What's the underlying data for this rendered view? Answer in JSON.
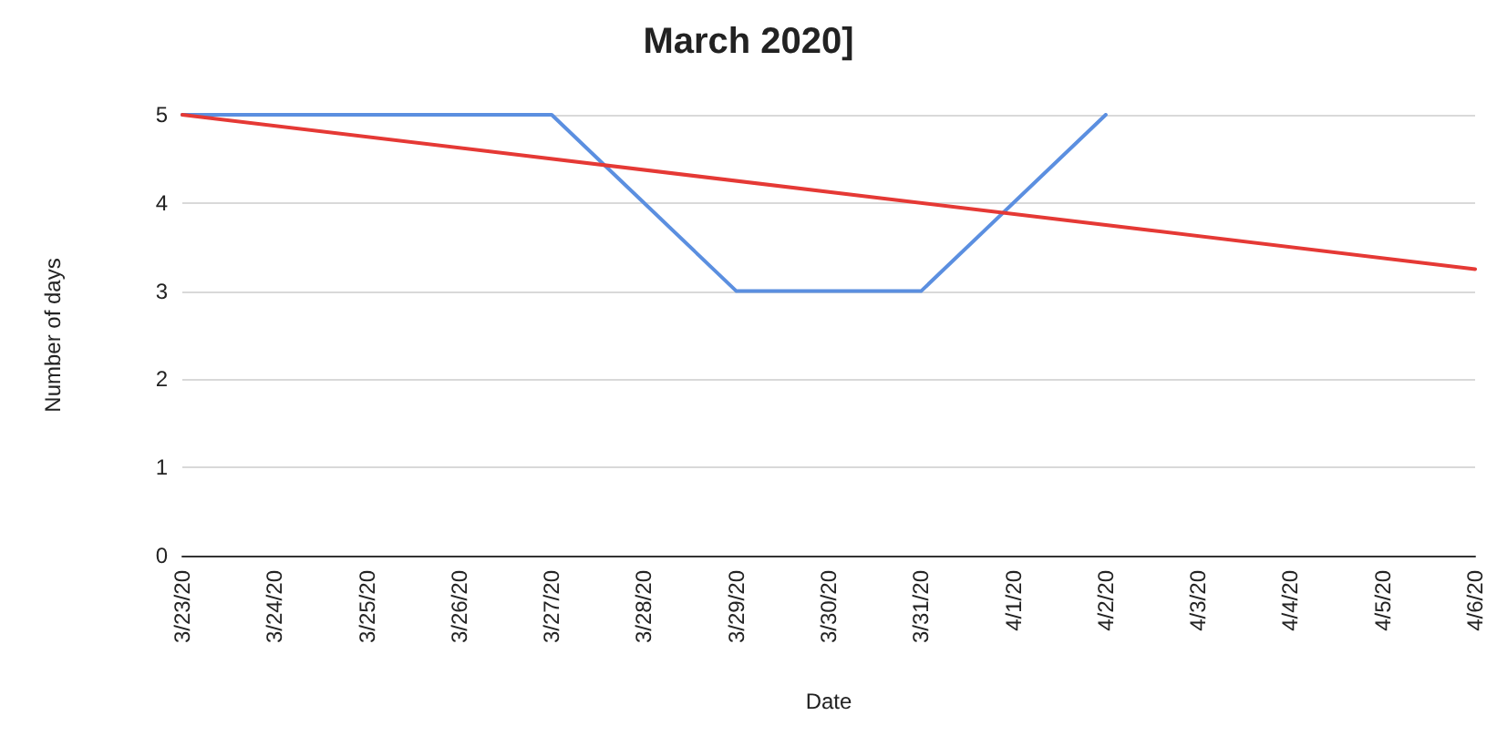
{
  "chart_data": {
    "type": "line",
    "title": "March 2020]",
    "xlabel": "Date",
    "ylabel": "Number of days",
    "categories": [
      "3/23/20",
      "3/24/20",
      "3/25/20",
      "3/26/20",
      "3/27/20",
      "3/28/20",
      "3/29/20",
      "3/30/20",
      "3/31/20",
      "4/1/20",
      "4/2/20",
      "4/3/20",
      "4/4/20",
      "4/5/20",
      "4/6/20"
    ],
    "series": [
      {
        "color": "#5b8fe0",
        "values": [
          5,
          5,
          5,
          5,
          5,
          4,
          3,
          3,
          3,
          4,
          5,
          null,
          null,
          null,
          null
        ]
      },
      {
        "type": "line",
        "color": "#e53935",
        "x": [
          "3/23/20",
          "4/6/20"
        ],
        "values": [
          5,
          3.25
        ]
      }
    ],
    "ylim": [
      0,
      5
    ],
    "yticks": [
      0,
      1,
      2,
      3,
      4,
      5
    ],
    "grid": "y",
    "marker": "none",
    "line_style": "solid"
  }
}
